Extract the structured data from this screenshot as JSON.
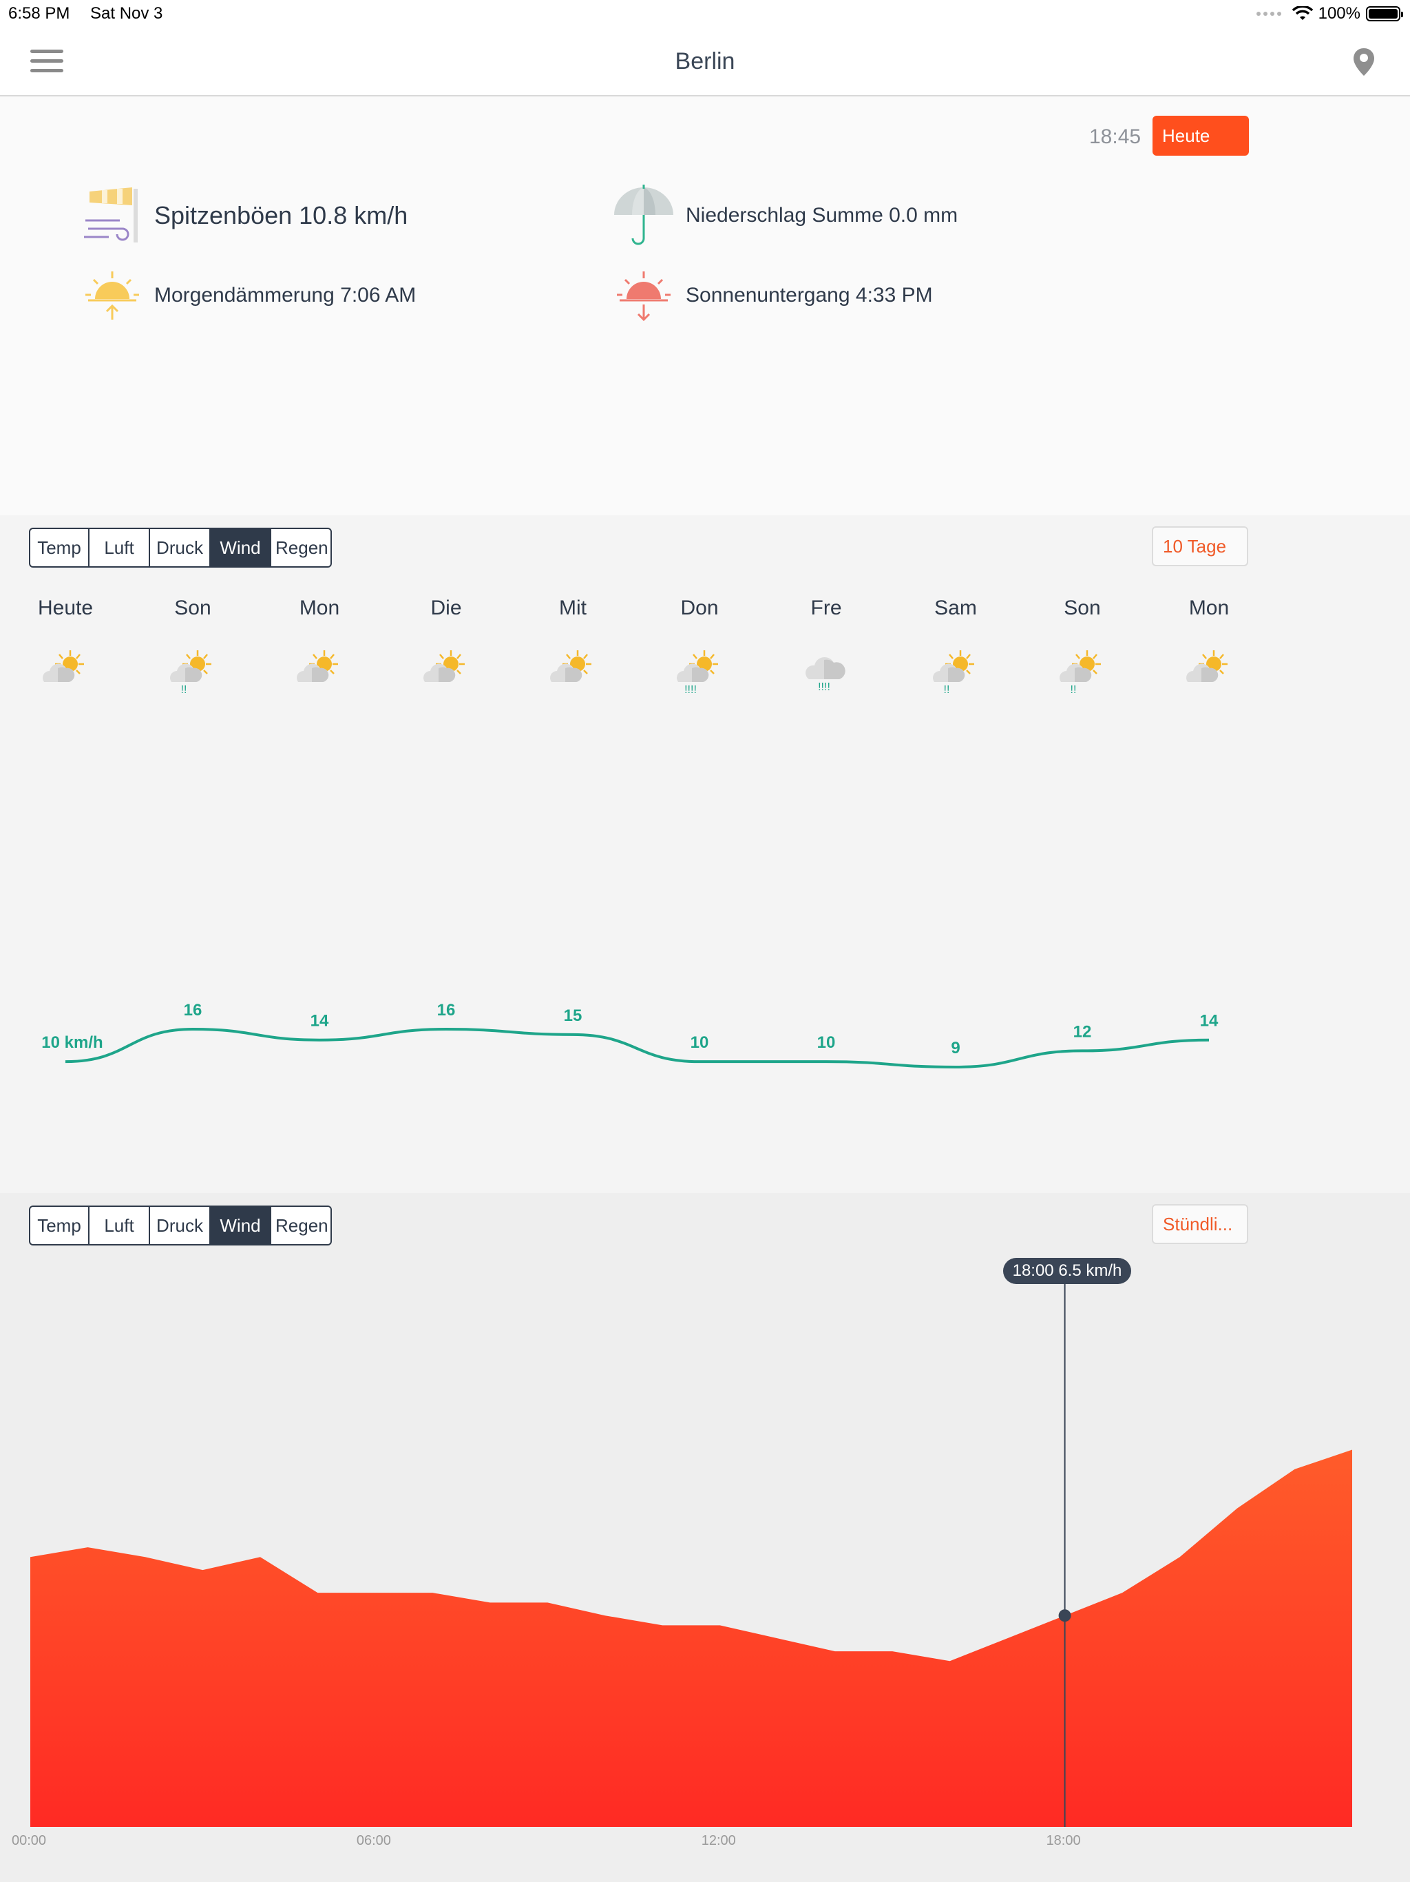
{
  "status_bar": {
    "time": "6:58 PM",
    "date": "Sat Nov 3",
    "battery": "100%"
  },
  "nav": {
    "title": "Berlin",
    "menu_icon": "hamburger-icon",
    "location_icon": "map-pin-icon"
  },
  "summary": {
    "time": "18:45",
    "today_button": "Heute",
    "gusts": "Spitzenböen 10.8 km/h",
    "precipitation": "Niederschlag Summe 0.0 mm",
    "dawn": "Morgendämmerung 7:06 AM",
    "sunset": "Sonnenuntergang 4:33 PM"
  },
  "daily": {
    "tabs": [
      "Temp",
      "Luft",
      "Druck",
      "Wind",
      "Regen"
    ],
    "active_tab": "Wind",
    "range_button": "10 Tage",
    "days": [
      {
        "name": "Heute",
        "icon": "partly-cloudy-icon",
        "rain": ""
      },
      {
        "name": "Son",
        "icon": "partly-cloudy-rain-icon",
        "rain": "!!"
      },
      {
        "name": "Mon",
        "icon": "partly-cloudy-icon",
        "rain": ""
      },
      {
        "name": "Die",
        "icon": "partly-cloudy-icon",
        "rain": ""
      },
      {
        "name": "Mit",
        "icon": "partly-cloudy-icon",
        "rain": ""
      },
      {
        "name": "Don",
        "icon": "partly-cloudy-rain-icon",
        "rain": "!!!!"
      },
      {
        "name": "Fre",
        "icon": "cloudy-rain-icon",
        "rain": "!!!!"
      },
      {
        "name": "Sam",
        "icon": "partly-cloudy-rain-icon",
        "rain": "!!"
      },
      {
        "name": "Son",
        "icon": "partly-cloudy-rain-icon",
        "rain": "!!"
      },
      {
        "name": "Mon",
        "icon": "partly-cloudy-icon",
        "rain": ""
      }
    ]
  },
  "hourly": {
    "tabs": [
      "Temp",
      "Luft",
      "Druck",
      "Wind",
      "Regen"
    ],
    "active_tab": "Wind",
    "range_button": "Stündli...",
    "tooltip": "18:00 6.5 km/h",
    "x_labels": [
      "00:00",
      "06:00",
      "12:00",
      "18:00"
    ]
  },
  "colors": {
    "accent": "#ff4f1d",
    "line": "#1ea58a",
    "dark": "#2f3a4a",
    "area_top": "#ff5c2a",
    "area_bottom": "#ff2a24"
  },
  "chart_data": [
    {
      "type": "line",
      "categories": [
        "Heute",
        "Son",
        "Mon",
        "Die",
        "Mit",
        "Don",
        "Fre",
        "Sam",
        "Son",
        "Mon"
      ],
      "series": [
        {
          "values": [
            10,
            16,
            14,
            16,
            15,
            10,
            10,
            9,
            12,
            14
          ]
        }
      ],
      "point_labels": [
        "10 km/h",
        "16",
        "14",
        "16",
        "15",
        "10",
        "10",
        "9",
        "12",
        "14"
      ],
      "ylim": [
        0,
        16
      ]
    },
    {
      "type": "area",
      "x": [
        0,
        1,
        2,
        3,
        4,
        5,
        6,
        7,
        8,
        9,
        10,
        11,
        12,
        13,
        14,
        15,
        16,
        17,
        18,
        19,
        20,
        21,
        22,
        23
      ],
      "series": [
        {
          "values": [
            8.3,
            8.6,
            8.3,
            7.9,
            8.3,
            7.2,
            7.2,
            7.2,
            6.9,
            6.9,
            6.5,
            6.2,
            6.2,
            5.8,
            5.4,
            5.4,
            5.1,
            5.8,
            6.5,
            7.2,
            8.3,
            9.8,
            11.0,
            11.6
          ]
        }
      ],
      "x_ticks": [
        "00:00",
        "06:00",
        "12:00",
        "18:00"
      ],
      "highlight": {
        "x": 18,
        "value": 6.5,
        "label": "18:00 6.5 km/h"
      },
      "ylim": [
        0,
        12.5
      ]
    }
  ]
}
